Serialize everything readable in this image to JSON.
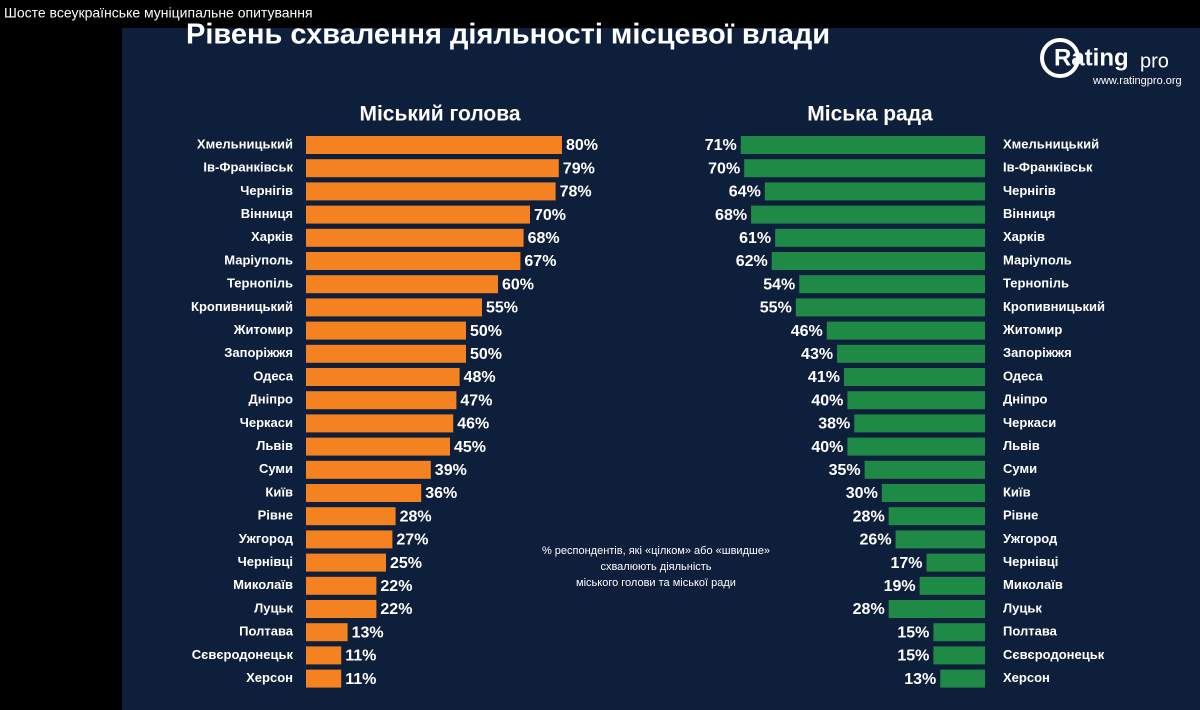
{
  "page": {
    "window_title": "Шосте всеукраїнське муніципальне опитування",
    "slide_title": "Рівень схвалення діяльності місцевої влади",
    "logo_text": "Rating",
    "logo_suffix": "pro",
    "website": "www.ratingpro.org",
    "note": [
      "% респондентів, які «цілком» або «швидше»",
      "схвалюють діяльність",
      "міського голови та міської ради"
    ]
  },
  "chart_data": [
    {
      "type": "bar",
      "title": "Міський голова",
      "color": "#f58220",
      "categories": [
        "Хмельницький",
        "Iв-Франківськ",
        "Чернігів",
        "Вінниця",
        "Харків",
        "Маріуполь",
        "Тернопіль",
        "Кропивницький",
        "Житомир",
        "Запоріжжя",
        "Одеса",
        "Дніпро",
        "Черкаси",
        "Львів",
        "Суми",
        "Київ",
        "Рівне",
        "Ужгород",
        "Чернівці",
        "Миколаїв",
        "Луцьк",
        "Полтава",
        "Сєвєродонецьк",
        "Херсон"
      ],
      "values": [
        80,
        79,
        78,
        70,
        68,
        67,
        60,
        55,
        50,
        50,
        48,
        47,
        46,
        45,
        39,
        36,
        28,
        27,
        25,
        22,
        22,
        13,
        11,
        11
      ],
      "value_labels": [
        "80%",
        "79%",
        "78%",
        "70%",
        "68%",
        "67%",
        "60%",
        "55%",
        "50%",
        "50%",
        "48%",
        "47%",
        "46%",
        "45%",
        "39%",
        "36%",
        "28%",
        "27%",
        "25%",
        "22%",
        "22%",
        "13%",
        "11%",
        "11%"
      ]
    },
    {
      "type": "bar",
      "title": "Міська рада",
      "color": "#1f8a45",
      "categories": [
        "Хмельницький",
        "Iв-Франківськ",
        "Чернігів",
        "Вінниця",
        "Харків",
        "Маріуполь",
        "Тернопіль",
        "Кропивницький",
        "Житомир",
        "Запоріжжя",
        "Одеса",
        "Дніпро",
        "Черкаси",
        "Львів",
        "Суми",
        "Київ",
        "Рівне",
        "Ужгород",
        "Чернівці",
        "Миколаїв",
        "Луцьк",
        "Полтава",
        "Сєвєродонецьк",
        "Херсон"
      ],
      "values": [
        71,
        70,
        64,
        68,
        61,
        62,
        54,
        55,
        46,
        43,
        41,
        40,
        38,
        40,
        35,
        30,
        28,
        26,
        17,
        19,
        28,
        15,
        15,
        13
      ],
      "value_labels": [
        "71%",
        "70%",
        "64%",
        "68%",
        "61%",
        "62%",
        "54%",
        "55%",
        "46%",
        "43%",
        "41%",
        "40%",
        "38%",
        "40%",
        "35%",
        "30%",
        "28%",
        "26%",
        "17%",
        "19%",
        "28%",
        "15%",
        "15%",
        "13%"
      ]
    }
  ]
}
